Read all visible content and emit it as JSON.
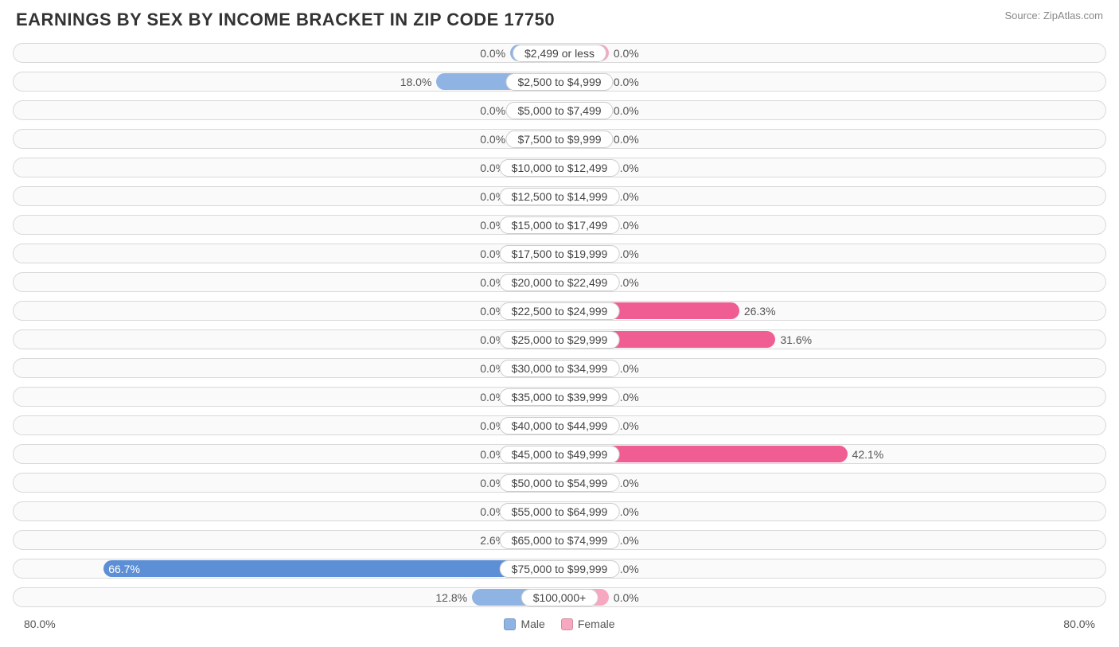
{
  "title": "EARNINGS BY SEX BY INCOME BRACKET IN ZIP CODE 17750",
  "source": "Source: ZipAtlas.com",
  "axis_max": 80.0,
  "axis_label_left": "80.0%",
  "axis_label_right": "80.0%",
  "colors": {
    "male_bar": "#8fb4e3",
    "male_bar_strong": "#5d8fd6",
    "female_bar": "#f7a8c0",
    "female_bar_strong": "#ef5d92",
    "track_border": "#d9d9d9",
    "track_bg": "#fafafa",
    "text": "#555555",
    "title": "#333333",
    "source": "#888888",
    "label_border": "#cccccc"
  },
  "legend": {
    "male": "Male",
    "female": "Female"
  },
  "min_bar_pct": 4.5,
  "rows": [
    {
      "label": "$2,499 or less",
      "male": 0.0,
      "female": 0.0
    },
    {
      "label": "$2,500 to $4,999",
      "male": 18.0,
      "female": 0.0
    },
    {
      "label": "$5,000 to $7,499",
      "male": 0.0,
      "female": 0.0
    },
    {
      "label": "$7,500 to $9,999",
      "male": 0.0,
      "female": 0.0
    },
    {
      "label": "$10,000 to $12,499",
      "male": 0.0,
      "female": 0.0
    },
    {
      "label": "$12,500 to $14,999",
      "male": 0.0,
      "female": 0.0
    },
    {
      "label": "$15,000 to $17,499",
      "male": 0.0,
      "female": 0.0
    },
    {
      "label": "$17,500 to $19,999",
      "male": 0.0,
      "female": 0.0
    },
    {
      "label": "$20,000 to $22,499",
      "male": 0.0,
      "female": 0.0
    },
    {
      "label": "$22,500 to $24,999",
      "male": 0.0,
      "female": 26.3
    },
    {
      "label": "$25,000 to $29,999",
      "male": 0.0,
      "female": 31.6
    },
    {
      "label": "$30,000 to $34,999",
      "male": 0.0,
      "female": 0.0
    },
    {
      "label": "$35,000 to $39,999",
      "male": 0.0,
      "female": 0.0
    },
    {
      "label": "$40,000 to $44,999",
      "male": 0.0,
      "female": 0.0
    },
    {
      "label": "$45,000 to $49,999",
      "male": 0.0,
      "female": 42.1
    },
    {
      "label": "$50,000 to $54,999",
      "male": 0.0,
      "female": 0.0
    },
    {
      "label": "$55,000 to $64,999",
      "male": 0.0,
      "female": 0.0
    },
    {
      "label": "$65,000 to $74,999",
      "male": 2.6,
      "female": 0.0
    },
    {
      "label": "$75,000 to $99,999",
      "male": 66.7,
      "female": 0.0
    },
    {
      "label": "$100,000+",
      "male": 12.8,
      "female": 0.0
    }
  ]
}
